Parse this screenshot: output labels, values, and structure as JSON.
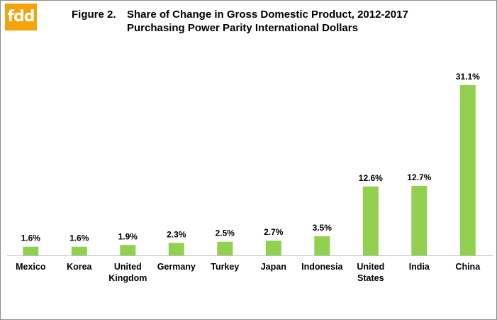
{
  "logo": {
    "text": "fdd",
    "color": "#f5a30a"
  },
  "title": {
    "figure": "Figure 2.",
    "line1": "Share of Change in Gross Domestic Product, 2012-2017",
    "line2": "Purchasing Power Parity International Dollars"
  },
  "chart_data": {
    "type": "bar",
    "title": "Figure 2. Share of Change in Gross Domestic Product, 2012-2017",
    "subtitle": "Purchasing Power Parity International Dollars",
    "categories": [
      [
        "Mexico"
      ],
      [
        "Korea"
      ],
      [
        "United",
        "Kingdom"
      ],
      [
        "Germany"
      ],
      [
        "Turkey"
      ],
      [
        "Japan"
      ],
      [
        "Indonesia"
      ],
      [
        "United",
        "States"
      ],
      [
        "India"
      ],
      [
        "China"
      ]
    ],
    "values": [
      1.6,
      1.6,
      1.9,
      2.3,
      2.5,
      2.7,
      3.5,
      12.6,
      12.7,
      31.1
    ],
    "data_labels": [
      "1.6%",
      "1.6%",
      "1.9%",
      "2.3%",
      "2.5%",
      "2.7%",
      "3.5%",
      "12.6%",
      "12.7%",
      "31.1%"
    ],
    "unit": "%",
    "bar_color": "#92d050",
    "xlabel": "",
    "ylabel": "",
    "ylim": [
      0,
      31.1
    ],
    "grid": false,
    "legend": "none"
  }
}
